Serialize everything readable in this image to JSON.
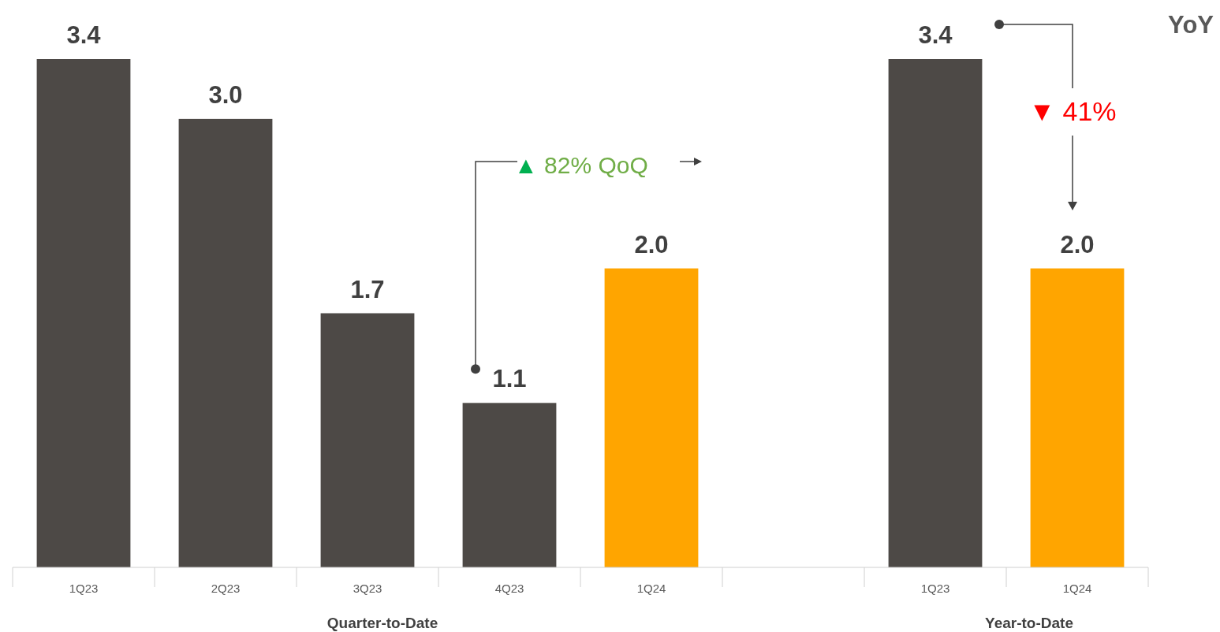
{
  "chart_data": {
    "type": "bar",
    "categories": [
      "1Q23",
      "2Q23",
      "3Q23",
      "4Q23",
      "1Q24",
      null,
      "1Q23",
      "1Q24"
    ],
    "values": [
      3.4,
      3.0,
      1.7,
      1.1,
      2.0,
      null,
      3.4,
      2.0
    ],
    "colors": [
      "#4d4946",
      "#4d4946",
      "#4d4946",
      "#4d4946",
      "#ffa500",
      null,
      "#4d4946",
      "#ffa500"
    ],
    "ylim": [
      0,
      3.4
    ],
    "tick_labels": "x",
    "value_labels": [
      "3.4",
      "3.0",
      "1.7",
      "1.1",
      "2.0",
      null,
      "3.4",
      "2.0"
    ],
    "annotations": [
      "▲ 82% QoQ",
      "▼ 41%",
      "YoY",
      "Quarter-to-Date",
      "Year-to-Date"
    ]
  }
}
